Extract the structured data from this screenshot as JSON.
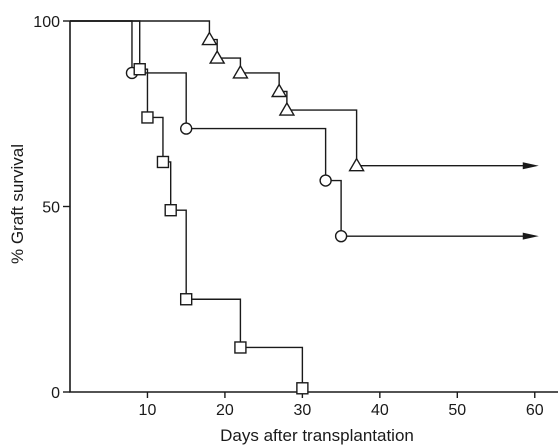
{
  "chart_data": {
    "type": "line",
    "title": "",
    "xlabel": "Days after transplantation",
    "ylabel": "% Graft survival",
    "xlim": [
      0,
      63
    ],
    "ylim": [
      0,
      100
    ],
    "x_ticks": [
      10,
      20,
      30,
      40,
      50,
      60
    ],
    "y_ticks": [
      0,
      50,
      100
    ],
    "grid": false,
    "series": [
      {
        "marker": "triangle",
        "x": [
          18,
          19,
          22,
          27,
          28,
          37
        ],
        "y": [
          95,
          90,
          86,
          81,
          76,
          61
        ],
        "continues_to": 60
      },
      {
        "marker": "circle",
        "x": [
          8,
          15,
          33,
          35
        ],
        "y": [
          86,
          71,
          57,
          42
        ],
        "continues_to": 60
      },
      {
        "marker": "square",
        "x": [
          9,
          10,
          12,
          13,
          15,
          22,
          30
        ],
        "y": [
          87,
          74,
          62,
          49,
          25,
          12,
          1
        ],
        "continues_to": null
      }
    ]
  }
}
